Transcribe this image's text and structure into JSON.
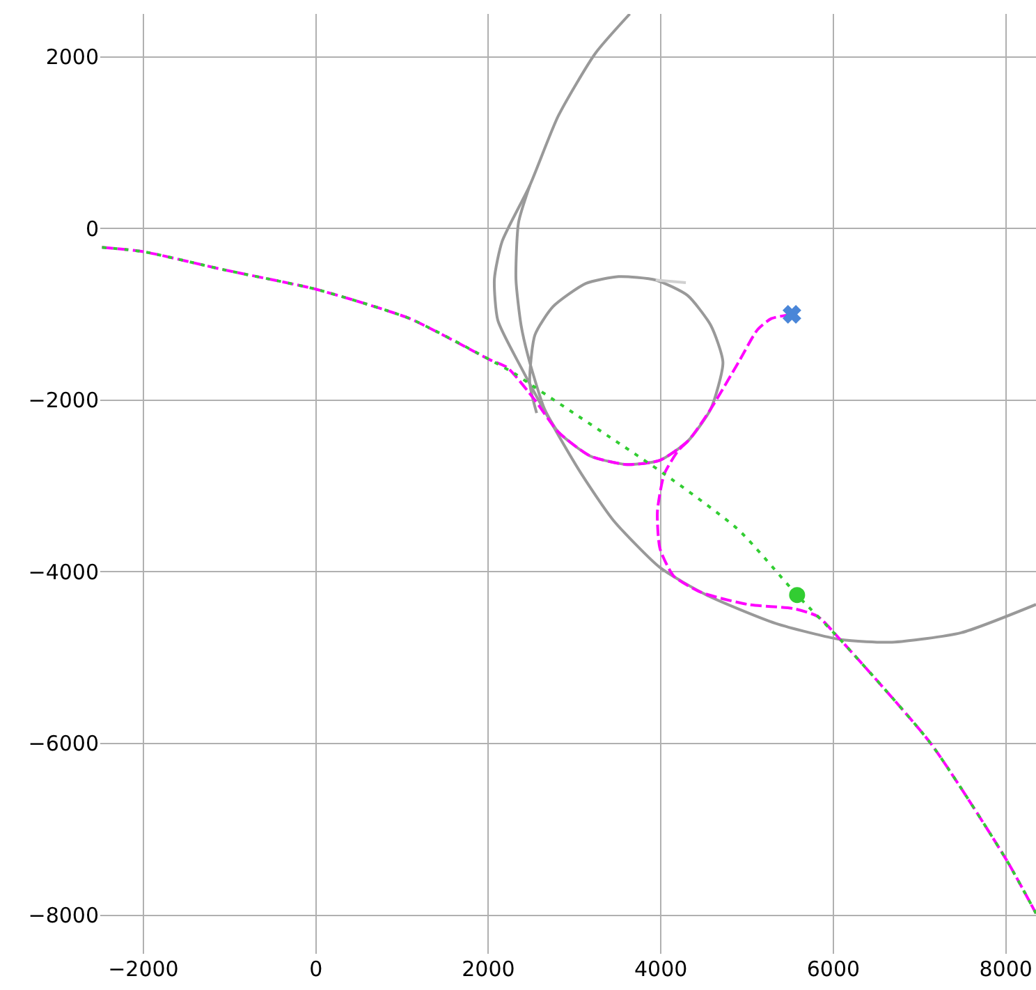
{
  "chart_data": {
    "type": "line",
    "xlim": [
      -2500,
      8350
    ],
    "ylim": [
      -8450,
      2500
    ],
    "xticks": [
      -2000,
      0,
      2000,
      4000,
      6000,
      8000
    ],
    "yticks": [
      -8000,
      -6000,
      -4000,
      -2000,
      0,
      2000
    ],
    "grid": true,
    "series": [
      {
        "color": "#999999",
        "line_style": "solid",
        "marker": "none",
        "x": [
          3640,
          3240,
          2810,
          2480,
          2160,
          2070,
          2110,
          2380,
          2700,
          3080,
          3450,
          3990,
          4530,
          5330,
          6090,
          6680,
          7480,
          8350
        ],
        "values": [
          2500,
          2040,
          1310,
          500,
          -150,
          -590,
          -1070,
          -1620,
          -2210,
          -2860,
          -3400,
          -3950,
          -4270,
          -4600,
          -4790,
          -4820,
          -4710,
          -4380
        ]
      },
      {
        "color": "#999999",
        "line_style": "solid",
        "marker": "none",
        "x": [
          2480,
          2350,
          2320,
          2380,
          2480,
          2650,
          2810,
          3180,
          3610,
          3990,
          4310,
          4580,
          4720,
          4580,
          4310,
          3940,
          3510,
          3130,
          2750,
          2540,
          2480,
          2560
        ],
        "values": [
          500,
          70,
          -590,
          -1130,
          -1560,
          -2100,
          -2370,
          -2650,
          -2750,
          -2700,
          -2480,
          -2100,
          -1560,
          -1130,
          -780,
          -600,
          -560,
          -640,
          -910,
          -1240,
          -1800,
          -2150
        ]
      },
      {
        "color": "#d0d0d0",
        "line_style": "solid",
        "marker": "none",
        "x": [
          3940,
          4290
        ],
        "values": [
          -600,
          -630
        ]
      },
      {
        "color": "#ff00ff",
        "line_style": "dashed",
        "marker": "none",
        "x": [
          -2480,
          -2000,
          -1070,
          10,
          1090,
          2020,
          2220,
          2540,
          2810,
          3180,
          3610,
          3990,
          4310,
          4580,
          4900,
          5120,
          5280,
          5520,
          null,
          4310,
          4200,
          4040,
          3960,
          3990,
          4150,
          4470,
          5010,
          5550,
          5820,
          6090,
          7130,
          8010,
          8350
        ],
        "values": [
          -220,
          -270,
          -480,
          -710,
          -1050,
          -1530,
          -1620,
          -2000,
          -2370,
          -2650,
          -2750,
          -2700,
          -2480,
          -2100,
          -1560,
          -1180,
          -1050,
          -1000,
          null,
          -2480,
          -2590,
          -2860,
          -3300,
          -3730,
          -4050,
          -4240,
          -4380,
          -4430,
          -4520,
          -4800,
          -6000,
          -7360,
          -7980
        ]
      },
      {
        "color": "#32cd32",
        "line_style": "dashed",
        "marker": "none",
        "x": [
          -2480,
          -2000,
          -1070,
          10,
          1090,
          2020,
          2320,
          2480,
          4040,
          4900,
          5580,
          6090,
          7130,
          8010,
          8350
        ],
        "values": [
          -220,
          -270,
          -480,
          -710,
          -1050,
          -1530,
          -1700,
          -1810,
          -2860,
          -3510,
          -4270,
          -4800,
          -6000,
          -7360,
          -7980
        ]
      },
      {
        "type": "scatter",
        "color": "#32cd32",
        "marker": "circle",
        "x": [
          5580
        ],
        "values": [
          -4270
        ]
      },
      {
        "type": "scatter",
        "color": "#4a86d8",
        "marker": "cross",
        "x": [
          5520
        ],
        "values": [
          -1000
        ]
      }
    ]
  }
}
